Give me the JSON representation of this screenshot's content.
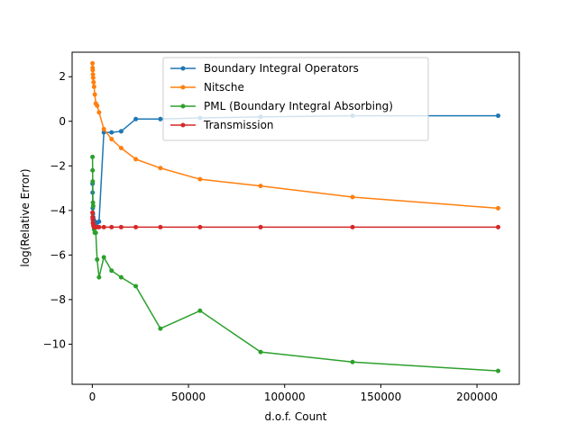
{
  "chart_data": {
    "type": "line",
    "title": "",
    "xlabel": "d.o.f. Count",
    "ylabel": "log(Relative Error)",
    "xlim": [
      -10500,
      222000
    ],
    "ylim": [
      -11.8,
      3.1
    ],
    "xticks": [
      0,
      50000,
      100000,
      150000,
      200000
    ],
    "xtick_labels": [
      "0",
      "50000",
      "100000",
      "150000",
      "200000"
    ],
    "yticks": [
      2,
      0,
      -2,
      -4,
      -6,
      -8,
      -10
    ],
    "ytick_labels": [
      "2",
      "0",
      "−2",
      "−4",
      "−6",
      "−8",
      "−10"
    ],
    "grid": false,
    "legend_position": "upper-center",
    "series": [
      {
        "name": "Boundary Integral Operators",
        "color": "#1f77b4",
        "x": [
          100,
          150,
          220,
          320,
          450,
          650,
          900,
          1300,
          1800,
          2500,
          3500,
          6000,
          10000,
          15000,
          22600,
          35400,
          56000,
          87500,
          135300,
          211000
        ],
        "y": [
          -2.8,
          -3.2,
          -3.9,
          -4.15,
          -4.3,
          -4.4,
          -4.45,
          -4.5,
          -4.55,
          -4.55,
          -4.5,
          -0.5,
          -0.5,
          -0.45,
          0.1,
          0.1,
          0.15,
          0.2,
          0.25,
          0.25
        ]
      },
      {
        "name": "Nitsche",
        "color": "#ff7f0e",
        "x": [
          100,
          150,
          220,
          320,
          450,
          650,
          900,
          1300,
          1800,
          2500,
          3500,
          6000,
          10000,
          15000,
          22600,
          35400,
          56000,
          87500,
          135300,
          211000
        ],
        "y": [
          2.6,
          2.4,
          2.3,
          2.1,
          1.95,
          1.75,
          1.55,
          1.2,
          0.8,
          0.7,
          0.4,
          -0.35,
          -0.8,
          -1.2,
          -1.7,
          -2.1,
          -2.6,
          -2.9,
          -3.4,
          -3.9
        ]
      },
      {
        "name": "PML (Boundary Integral Absorbing)",
        "color": "#2ca02c",
        "x": [
          100,
          150,
          220,
          320,
          450,
          650,
          900,
          1300,
          1800,
          2500,
          3500,
          6000,
          10000,
          15000,
          22600,
          35400,
          56000,
          87500,
          135300,
          211000
        ],
        "y": [
          -1.6,
          -2.2,
          -2.7,
          -3.65,
          -3.8,
          -4.7,
          -4.85,
          -5.0,
          -5.0,
          -6.2,
          -7.0,
          -6.1,
          -6.7,
          -7.0,
          -7.4,
          -9.3,
          -8.5,
          -10.35,
          -10.8,
          -11.2
        ]
      },
      {
        "name": "Transmission",
        "color": "#d62728",
        "x": [
          100,
          150,
          220,
          320,
          450,
          650,
          900,
          1300,
          1800,
          2500,
          3500,
          6000,
          10000,
          15000,
          22600,
          35400,
          56000,
          87500,
          135300,
          211000
        ],
        "y": [
          -4.1,
          -4.3,
          -4.4,
          -4.55,
          -4.6,
          -4.7,
          -4.75,
          -4.75,
          -4.75,
          -4.75,
          -4.75,
          -4.75,
          -4.75,
          -4.75,
          -4.75,
          -4.75,
          -4.75,
          -4.75,
          -4.75,
          -4.75
        ]
      }
    ]
  }
}
